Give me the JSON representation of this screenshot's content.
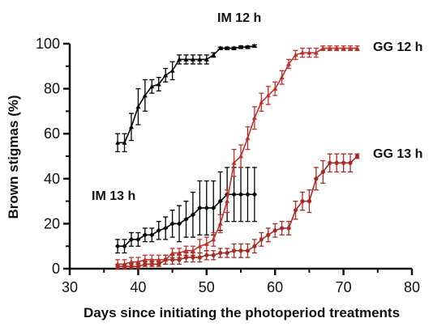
{
  "chart_data": {
    "type": "line",
    "xlabel": "Days since initiating the photoperiod treatments",
    "ylabel": "Brown stigmas (%)",
    "xlim": [
      30,
      80
    ],
    "ylim": [
      0,
      100
    ],
    "x_ticks": [
      "30",
      "40",
      "50",
      "60",
      "70",
      "80"
    ],
    "y_ticks": [
      "0",
      "20",
      "40",
      "60",
      "80",
      "100"
    ],
    "series": [
      {
        "name": "IM 12 h",
        "color": "#000000",
        "marker": "triangle",
        "x": [
          37,
          38,
          39,
          40,
          41,
          42,
          43,
          44,
          45,
          46,
          47,
          48,
          49,
          50,
          51,
          52,
          53,
          54,
          55,
          56,
          57
        ],
        "y": [
          56,
          56,
          63,
          72,
          77,
          81,
          82,
          86,
          88,
          93,
          93,
          93,
          93,
          93,
          95,
          98,
          98,
          98,
          98.5,
          98.5,
          99
        ],
        "err": [
          4,
          4,
          6,
          8,
          7,
          3,
          3,
          3,
          4,
          2,
          2,
          2,
          2,
          2,
          1,
          0.5,
          0.5,
          0.5,
          0.5,
          0.5,
          0.5
        ]
      },
      {
        "name": "IM 13 h",
        "color": "#000000",
        "marker": "diamond",
        "x": [
          37,
          38,
          39,
          40,
          41,
          42,
          43,
          44,
          45,
          46,
          47,
          48,
          49,
          50,
          51,
          52,
          53,
          54,
          55,
          56,
          57
        ],
        "y": [
          10,
          10,
          13,
          13,
          15,
          15,
          17,
          18,
          20,
          20,
          22,
          24,
          27,
          27,
          27,
          30,
          33,
          33,
          33,
          33,
          33
        ],
        "err": [
          3,
          3,
          3,
          3,
          3,
          3,
          4,
          5,
          6,
          8,
          8,
          10,
          12,
          12,
          12,
          13,
          12,
          12,
          12,
          12,
          12
        ]
      },
      {
        "name": "GG 12 h",
        "color": "#c0302a",
        "marker": "triangle",
        "x": [
          37,
          38,
          39,
          40,
          41,
          42,
          43,
          44,
          45,
          46,
          47,
          48,
          49,
          50,
          51,
          52,
          53,
          54,
          55,
          56,
          57,
          58,
          59,
          60,
          61,
          62,
          63,
          64,
          65,
          66,
          67,
          68,
          69,
          70,
          71,
          72
        ],
        "y": [
          2,
          2,
          3,
          3,
          4,
          4,
          4,
          4,
          7,
          7,
          8,
          8,
          10,
          11,
          13,
          20,
          30,
          47,
          50,
          58,
          67,
          74,
          77,
          80,
          85,
          91,
          95,
          96,
          96,
          96,
          98,
          98,
          98,
          98,
          98,
          98
        ],
        "err": [
          2,
          2,
          2,
          2,
          2,
          2,
          2,
          2,
          2,
          2,
          2,
          2,
          3,
          3,
          3,
          4,
          5,
          6,
          5,
          5,
          5,
          4,
          4,
          3,
          3,
          2,
          2,
          2,
          2,
          2,
          1,
          1,
          1,
          1,
          1,
          1
        ]
      },
      {
        "name": "GG 13 h",
        "color": "#a82a22",
        "marker": "circle",
        "x": [
          37,
          38,
          39,
          40,
          41,
          42,
          43,
          44,
          45,
          46,
          47,
          48,
          49,
          50,
          51,
          52,
          53,
          54,
          55,
          56,
          57,
          58,
          59,
          60,
          61,
          62,
          63,
          64,
          65,
          66,
          67,
          68,
          69,
          70,
          71,
          72
        ],
        "y": [
          1,
          1,
          1,
          1,
          2,
          2,
          2,
          4,
          4,
          4,
          5,
          5,
          5,
          6,
          6,
          7,
          7,
          8,
          8,
          8,
          10,
          13,
          15,
          17,
          18,
          18,
          26,
          30,
          30,
          40,
          43,
          47,
          47,
          47,
          47,
          50
        ],
        "err": [
          1,
          1,
          1,
          1,
          1,
          1,
          1,
          2,
          2,
          2,
          2,
          2,
          2,
          2,
          2,
          2,
          2,
          3,
          3,
          3,
          3,
          3,
          3,
          3,
          3,
          3,
          4,
          4,
          5,
          5,
          5,
          4,
          4,
          4,
          4,
          1
        ]
      }
    ]
  }
}
